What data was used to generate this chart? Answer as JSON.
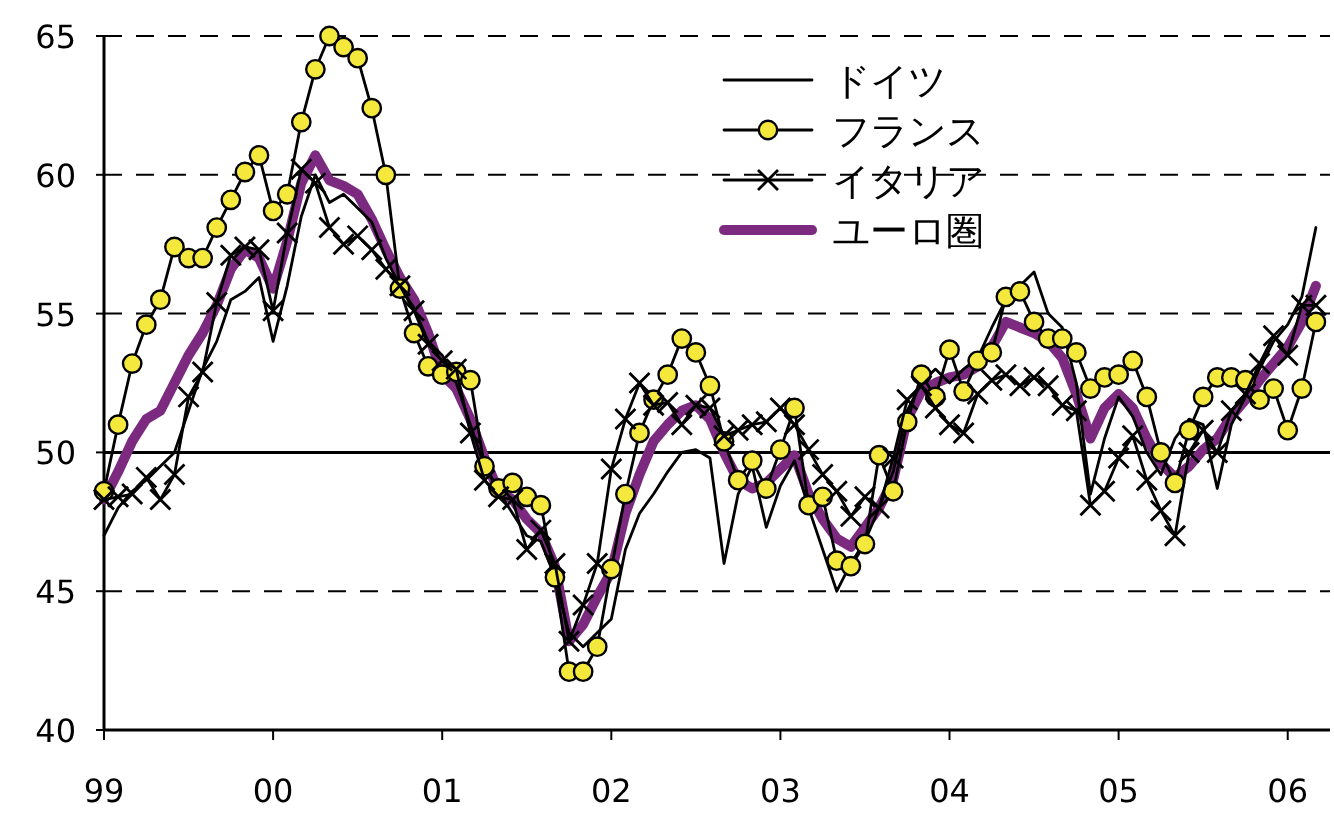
{
  "chart_data": {
    "type": "line",
    "x": [
      "1999-01",
      "1999-02",
      "1999-03",
      "1999-04",
      "1999-05",
      "1999-06",
      "1999-07",
      "1999-08",
      "1999-09",
      "1999-10",
      "1999-11",
      "1999-12",
      "2000-01",
      "2000-02",
      "2000-03",
      "2000-04",
      "2000-05",
      "2000-06",
      "2000-07",
      "2000-08",
      "2000-09",
      "2000-10",
      "2000-11",
      "2000-12",
      "2001-01",
      "2001-02",
      "2001-03",
      "2001-04",
      "2001-05",
      "2001-06",
      "2001-07",
      "2001-08",
      "2001-09",
      "2001-10",
      "2001-11",
      "2001-12",
      "2002-01",
      "2002-02",
      "2002-03",
      "2002-04",
      "2002-05",
      "2002-06",
      "2002-07",
      "2002-08",
      "2002-09",
      "2002-10",
      "2002-11",
      "2002-12",
      "2003-01",
      "2003-02",
      "2003-03",
      "2003-04",
      "2003-05",
      "2003-06",
      "2003-07",
      "2003-08",
      "2003-09",
      "2003-10",
      "2003-11",
      "2003-12",
      "2004-01",
      "2004-02",
      "2004-03",
      "2004-04",
      "2004-05",
      "2004-06",
      "2004-07",
      "2004-08",
      "2004-09",
      "2004-10",
      "2004-11",
      "2004-12",
      "2005-01",
      "2005-02",
      "2005-03",
      "2005-04",
      "2005-05",
      "2005-06",
      "2005-07",
      "2005-08",
      "2005-09",
      "2005-10",
      "2005-11",
      "2005-12",
      "2006-01",
      "2006-02",
      "2006-03"
    ],
    "series": [
      {
        "name": "ドイツ",
        "color": "#000000",
        "marker": "none",
        "values": [
          47.0,
          48.0,
          48.6,
          49.0,
          49.5,
          50.0,
          51.5,
          53.0,
          54.0,
          55.5,
          55.8,
          56.3,
          54.0,
          56.0,
          58.5,
          60.0,
          59.0,
          59.3,
          58.8,
          58.3,
          57.0,
          56.0,
          55.2,
          54.0,
          53.5,
          52.5,
          51.0,
          49.5,
          48.6,
          47.8,
          47.0,
          46.8,
          45.5,
          43.5,
          43.0,
          43.5,
          44.0,
          46.5,
          47.8,
          48.5,
          49.3,
          50.0,
          50.1,
          49.8,
          46.0,
          48.5,
          49.5,
          47.3,
          48.8,
          49.7,
          48.0,
          46.5,
          45.0,
          46.0,
          46.8,
          48.0,
          49.3,
          51.5,
          52.5,
          53.0,
          52.5,
          53.0,
          53.4,
          54.5,
          55.5,
          56.0,
          56.5,
          55.0,
          54.5,
          52.5,
          48.5,
          50.5,
          52.0,
          51.3,
          50.0,
          49.2,
          50.5,
          51.2,
          51.0,
          48.7,
          51.0,
          52.0,
          53.0,
          54.0,
          54.6,
          55.6,
          58.1
        ]
      },
      {
        "name": "フランス",
        "color": "#f5e83c",
        "marker": "circle",
        "values": [
          48.6,
          51.0,
          53.2,
          54.6,
          55.5,
          57.4,
          57.0,
          57.0,
          58.1,
          59.1,
          60.1,
          60.7,
          58.7,
          59.3,
          61.9,
          63.8,
          65.0,
          64.6,
          64.2,
          62.4,
          60.0,
          55.9,
          54.3,
          53.1,
          52.8,
          52.9,
          52.6,
          49.5,
          48.7,
          48.9,
          48.4,
          48.1,
          45.5,
          42.1,
          42.1,
          43.0,
          45.8,
          48.5,
          50.7,
          51.9,
          52.8,
          54.1,
          53.6,
          52.4,
          50.4,
          49.0,
          49.7,
          48.7,
          50.1,
          51.6,
          48.1,
          48.4,
          46.1,
          45.9,
          46.7,
          49.9,
          48.6,
          51.1,
          52.8,
          52.0,
          53.7,
          52.2,
          53.3,
          53.6,
          55.6,
          55.8,
          54.7,
          54.1,
          54.1,
          53.6,
          52.3,
          52.7,
          52.8,
          53.3,
          52.0,
          50.0,
          48.9,
          50.8,
          52.0,
          52.7,
          52.7,
          52.6,
          51.9,
          52.3,
          50.8,
          52.3,
          54.7
        ]
      },
      {
        "name": "イタリア",
        "color": "#000000",
        "marker": "cross",
        "values": [
          48.3,
          48.4,
          48.5,
          49.1,
          48.3,
          49.2,
          52.0,
          52.9,
          55.4,
          57.1,
          57.4,
          57.3,
          55.1,
          57.9,
          60.2,
          59.7,
          58.1,
          57.5,
          57.8,
          57.3,
          56.6,
          56.0,
          55.1,
          53.9,
          53.3,
          53.0,
          50.7,
          49.0,
          48.4,
          48.3,
          46.5,
          47.2,
          46.0,
          43.2,
          44.5,
          46.0,
          49.4,
          51.2,
          52.5,
          51.7,
          51.8,
          51.0,
          51.7,
          51.6,
          50.6,
          50.8,
          51.0,
          51.1,
          51.6,
          51.0,
          50.1,
          49.2,
          48.6,
          47.7,
          48.4,
          48.0,
          49.8,
          51.9,
          52.4,
          51.6,
          51.0,
          50.7,
          52.1,
          52.6,
          52.8,
          52.4,
          52.7,
          52.4,
          51.7,
          51.5,
          48.1,
          48.6,
          49.8,
          50.6,
          49.0,
          47.9,
          47.0,
          50.0,
          50.8,
          50.0,
          51.5,
          52.1,
          53.2,
          54.2,
          53.5,
          55.3,
          55.3
        ]
      },
      {
        "name": "ユーロ圏",
        "color": "#7b2a80",
        "marker": "none",
        "values": [
          48.3,
          49.3,
          50.4,
          51.2,
          51.5,
          52.5,
          53.5,
          54.3,
          55.3,
          56.6,
          57.3,
          57.0,
          55.9,
          57.6,
          59.7,
          60.7,
          59.8,
          59.6,
          59.3,
          58.4,
          57.3,
          56.3,
          55.5,
          54.3,
          52.8,
          52.3,
          51.2,
          49.8,
          48.6,
          48.3,
          47.6,
          47.1,
          45.9,
          43.2,
          43.8,
          44.8,
          45.7,
          47.8,
          49.2,
          50.4,
          51.0,
          51.5,
          51.7,
          51.2,
          50.0,
          49.0,
          48.7,
          48.9,
          49.4,
          49.9,
          48.5,
          47.6,
          46.9,
          46.6,
          47.3,
          48.0,
          49.0,
          51.2,
          52.2,
          52.5,
          52.7,
          52.8,
          53.1,
          53.8,
          54.7,
          54.5,
          54.3,
          54.0,
          53.4,
          52.1,
          50.5,
          51.6,
          52.1,
          51.6,
          50.5,
          49.6,
          49.1,
          49.5,
          50.1,
          50.5,
          51.3,
          51.9,
          52.6,
          53.2,
          53.8,
          54.7,
          56.0
        ]
      }
    ],
    "xlim": [
      "1999-01",
      "2006-04"
    ],
    "xticks": [
      {
        "value": "1999-01",
        "label": "99"
      },
      {
        "value": "2000-01",
        "label": "00"
      },
      {
        "value": "2001-01",
        "label": "01"
      },
      {
        "value": "2002-01",
        "label": "02"
      },
      {
        "value": "2003-01",
        "label": "03"
      },
      {
        "value": "2004-01",
        "label": "04"
      },
      {
        "value": "2005-01",
        "label": "05"
      },
      {
        "value": "2006-01",
        "label": "06"
      }
    ],
    "ylim": [
      40,
      65
    ],
    "yticks": [
      40,
      45,
      50,
      55,
      60,
      65
    ],
    "grid": "y",
    "ref_lines": [
      {
        "axis": "y",
        "value": 50,
        "color": "#000000",
        "line_style": "solid"
      }
    ],
    "legend": "top",
    "line_style": "solid"
  }
}
